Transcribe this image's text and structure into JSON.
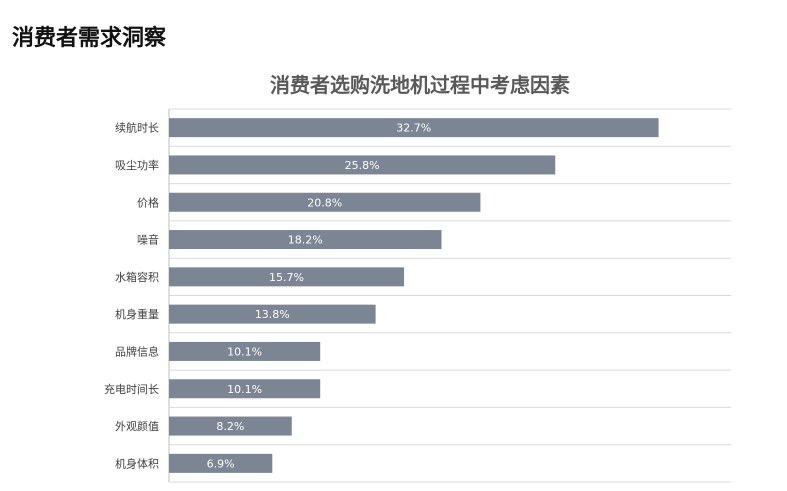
{
  "page": {
    "title": "消费者需求洞察"
  },
  "chart_data": {
    "type": "bar",
    "orientation": "horizontal",
    "title": "消费者选购洗地机过程中考虑因素",
    "categories": [
      "续航时长",
      "吸尘功率",
      "价格",
      "噪音",
      "水箱容积",
      "机身重量",
      "品牌信息",
      "充电时间长",
      "外观颜值",
      "机身体积"
    ],
    "values": [
      32.7,
      25.8,
      20.8,
      18.2,
      15.7,
      13.8,
      10.1,
      10.1,
      8.2,
      6.9
    ],
    "value_labels": [
      "32.7%",
      "25.8%",
      "20.8%",
      "18.2%",
      "15.7%",
      "13.8%",
      "10.1%",
      "10.1%",
      "8.2%",
      "6.9%"
    ],
    "unit": "%",
    "xlim": [
      0,
      35
    ],
    "grid": true,
    "legend": "none",
    "bar_color": "#7b8594",
    "grid_color": "#d9d9d9"
  }
}
